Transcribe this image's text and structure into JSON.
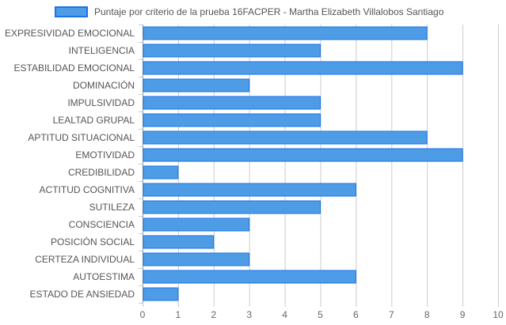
{
  "chart_data": {
    "type": "bar",
    "orientation": "horizontal",
    "title": "",
    "legend": {
      "position": "top",
      "entries": [
        "Puntaje por criterio de la prueba 16FACPER - Martha Elizabeth Villalobos Santiago"
      ]
    },
    "categories": [
      "EXPRESIVIDAD EMOCIONAL",
      "INTELIGENCIA",
      "ESTABILIDAD EMOCIONAL",
      "DOMINACIÓN",
      "IMPULSIVIDAD",
      "LEALTAD GRUPAL",
      "APTITUD SITUACIONAL",
      "EMOTIVIDAD",
      "CREDIBILIDAD",
      "ACTITUD COGNITIVA",
      "SUTILEZA",
      "CONSCIENCIA",
      "POSICIÓN SOCIAL",
      "CERTEZA INDIVIDUAL",
      "AUTOESTIMA",
      "ESTADO DE ANSIEDAD"
    ],
    "series": [
      {
        "name": "Puntaje por criterio de la prueba 16FACPER - Martha Elizabeth Villalobos Santiago",
        "values": [
          8,
          5,
          9,
          3,
          5,
          5,
          8,
          9,
          1,
          6,
          5,
          3,
          2,
          3,
          6,
          1
        ]
      }
    ],
    "xlim": [
      0,
      10
    ],
    "xticks": [
      0,
      1,
      2,
      3,
      4,
      5,
      6,
      7,
      8,
      9,
      10
    ],
    "grid": true,
    "colors": {
      "bar_fill": "#4e9ce6",
      "bar_border": "#1a73e8",
      "grid": "#cccccc",
      "axis_text": "#555555"
    }
  }
}
